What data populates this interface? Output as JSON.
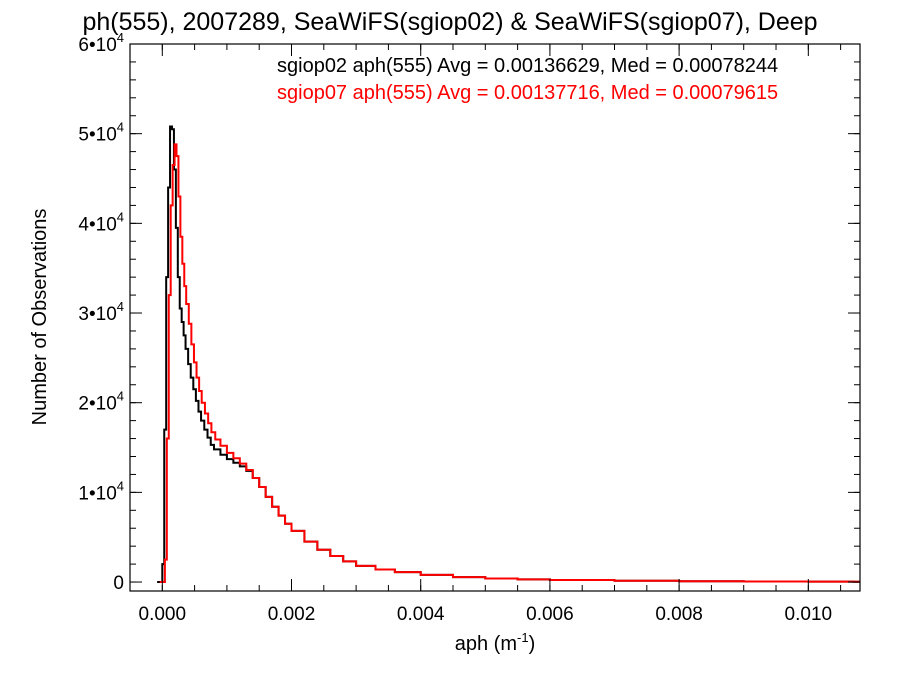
{
  "chart_data": {
    "type": "line",
    "title": "ph(555), 2007289, SeaWiFS(sgiop02) & SeaWiFS(sgiop07), Deep",
    "xlabel_base": "aph (m",
    "xlabel_exp": "-1",
    "xlabel_tail": ")",
    "ylabel": "Number of Observations",
    "xlim": [
      -0.0005,
      0.0108
    ],
    "ylim": [
      -1000,
      60000
    ],
    "x_ticks": [
      {
        "value": 0.0,
        "label": "0.000"
      },
      {
        "value": 0.002,
        "label": "0.002"
      },
      {
        "value": 0.004,
        "label": "0.004"
      },
      {
        "value": 0.006,
        "label": "0.006"
      },
      {
        "value": 0.008,
        "label": "0.008"
      },
      {
        "value": 0.01,
        "label": "0.010"
      }
    ],
    "x_minor_step": 0.0005,
    "y_ticks": [
      {
        "value": 0,
        "mant": "0",
        "exp": ""
      },
      {
        "value": 10000,
        "mant": "1•10",
        "exp": "4"
      },
      {
        "value": 20000,
        "mant": "2•10",
        "exp": "4"
      },
      {
        "value": 30000,
        "mant": "3•10",
        "exp": "4"
      },
      {
        "value": 40000,
        "mant": "4•10",
        "exp": "4"
      },
      {
        "value": 50000,
        "mant": "5•10",
        "exp": "4"
      },
      {
        "value": 60000,
        "mant": "6•10",
        "exp": "4"
      }
    ],
    "y_minor_step": 2000,
    "series": [
      {
        "label": "sgiop02 aph(555) Avg = 0.00136629, Med = 0.00078244",
        "color": "#000000",
        "points": [
          [
            -8e-05,
            0
          ],
          [
            0.0,
            2000
          ],
          [
            3e-05,
            17000
          ],
          [
            6e-05,
            34000
          ],
          [
            9e-05,
            44000
          ],
          [
            0.00012,
            50800
          ],
          [
            0.00015,
            50500
          ],
          [
            0.00018,
            46000
          ],
          [
            0.00021,
            39500
          ],
          [
            0.00024,
            34000
          ],
          [
            0.00027,
            30500
          ],
          [
            0.0003,
            29000
          ],
          [
            0.00033,
            27500
          ],
          [
            0.00036,
            26000
          ],
          [
            0.0004,
            24300
          ],
          [
            0.00044,
            22800
          ],
          [
            0.00048,
            21500
          ],
          [
            0.00052,
            20200
          ],
          [
            0.00056,
            19000
          ],
          [
            0.0006,
            18000
          ],
          [
            0.00065,
            17000
          ],
          [
            0.0007,
            16100
          ],
          [
            0.00075,
            15300
          ],
          [
            0.0008,
            14800
          ],
          [
            0.0009,
            14200
          ],
          [
            0.001,
            13700
          ],
          [
            0.0011,
            13300
          ],
          [
            0.0012,
            12900
          ],
          [
            0.0013,
            12400
          ],
          [
            0.0014,
            11600
          ],
          [
            0.0015,
            10600
          ],
          [
            0.0016,
            9500
          ],
          [
            0.0017,
            8400
          ],
          [
            0.0018,
            7400
          ],
          [
            0.0019,
            6500
          ],
          [
            0.002,
            5700
          ],
          [
            0.0022,
            4500
          ],
          [
            0.0024,
            3600
          ],
          [
            0.0026,
            2900
          ],
          [
            0.0028,
            2300
          ],
          [
            0.003,
            1800
          ],
          [
            0.0033,
            1400
          ],
          [
            0.0036,
            1100
          ],
          [
            0.004,
            800
          ],
          [
            0.0045,
            550
          ],
          [
            0.005,
            400
          ],
          [
            0.0055,
            300
          ],
          [
            0.006,
            220
          ],
          [
            0.007,
            140
          ],
          [
            0.008,
            90
          ],
          [
            0.009,
            60
          ],
          [
            0.01,
            40
          ],
          [
            0.0107,
            30
          ]
        ]
      },
      {
        "label": "sgiop07 aph(555) Avg = 0.00137716, Med = 0.00079615",
        "color": "#ff0000",
        "points": [
          [
            -4e-05,
            0
          ],
          [
            4e-05,
            2500
          ],
          [
            7e-05,
            16000
          ],
          [
            0.0001,
            32000
          ],
          [
            0.00013,
            42000
          ],
          [
            0.00016,
            46500
          ],
          [
            0.00019,
            48800
          ],
          [
            0.00022,
            47500
          ],
          [
            0.00025,
            43000
          ],
          [
            0.00028,
            38500
          ],
          [
            0.00031,
            35500
          ],
          [
            0.00034,
            33000
          ],
          [
            0.00037,
            31000
          ],
          [
            0.00041,
            28800
          ],
          [
            0.00045,
            26500
          ],
          [
            0.00049,
            24500
          ],
          [
            0.00053,
            22800
          ],
          [
            0.00057,
            21300
          ],
          [
            0.00061,
            20000
          ],
          [
            0.00066,
            18800
          ],
          [
            0.00071,
            17700
          ],
          [
            0.00076,
            16700
          ],
          [
            0.00082,
            15900
          ],
          [
            0.0009,
            15200
          ],
          [
            0.001,
            14400
          ],
          [
            0.0011,
            13800
          ],
          [
            0.0012,
            13200
          ],
          [
            0.0013,
            12500
          ],
          [
            0.0014,
            11600
          ],
          [
            0.0015,
            10600
          ],
          [
            0.0016,
            9500
          ],
          [
            0.0017,
            8400
          ],
          [
            0.0018,
            7400
          ],
          [
            0.0019,
            6500
          ],
          [
            0.002,
            5700
          ],
          [
            0.0022,
            4500
          ],
          [
            0.0024,
            3600
          ],
          [
            0.0026,
            2900
          ],
          [
            0.0028,
            2300
          ],
          [
            0.003,
            1800
          ],
          [
            0.0033,
            1400
          ],
          [
            0.0036,
            1100
          ],
          [
            0.004,
            800
          ],
          [
            0.0045,
            550
          ],
          [
            0.005,
            400
          ],
          [
            0.0055,
            300
          ],
          [
            0.006,
            220
          ],
          [
            0.007,
            140
          ],
          [
            0.008,
            90
          ],
          [
            0.009,
            60
          ],
          [
            0.01,
            40
          ],
          [
            0.0107,
            30
          ]
        ]
      }
    ]
  }
}
